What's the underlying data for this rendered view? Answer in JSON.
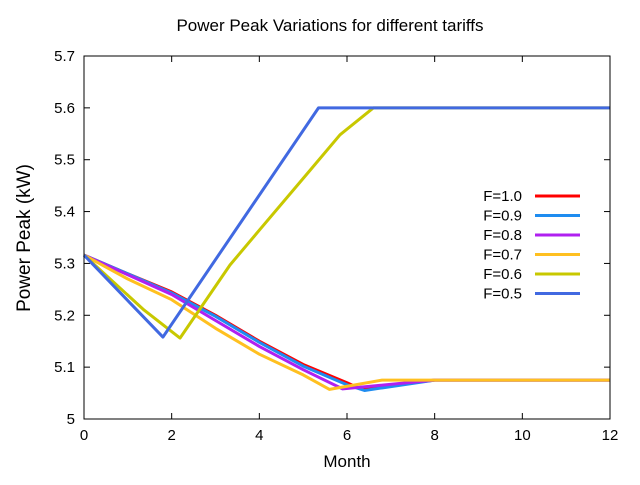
{
  "chart_data": {
    "type": "line",
    "title": "Power Peak Variations for different tariffs",
    "xlabel": "Month",
    "ylabel": "Power Peak (kW)",
    "xlim": [
      0,
      12
    ],
    "ylim": [
      5,
      5.7
    ],
    "xticks": [
      0,
      2,
      4,
      6,
      8,
      10,
      12
    ],
    "xtick_labels": [
      "0",
      "2",
      "4",
      "6",
      "8",
      "10",
      "12"
    ],
    "yticks": [
      5,
      5.1,
      5.2,
      5.3,
      5.4,
      5.5,
      5.6,
      5.7
    ],
    "ytick_labels": [
      "5",
      "5.1",
      "5.2",
      "5.3",
      "5.4",
      "5.5",
      "5.6",
      "5.7"
    ],
    "grid": false,
    "legend_position": "right",
    "series": [
      {
        "name": "F=1.0",
        "color": "#ff0000",
        "x": [
          0,
          1,
          2,
          3,
          4,
          5,
          6,
          6.3,
          8,
          12
        ],
        "y": [
          5.316,
          5.28,
          5.245,
          5.2,
          5.15,
          5.105,
          5.07,
          5.058,
          5.075,
          5.075
        ]
      },
      {
        "name": "F=0.9",
        "color": "#1e8cf0",
        "x": [
          0,
          1,
          2,
          3,
          4,
          5,
          6,
          6.4,
          8,
          12
        ],
        "y": [
          5.316,
          5.28,
          5.243,
          5.198,
          5.148,
          5.102,
          5.066,
          5.055,
          5.075,
          5.075
        ]
      },
      {
        "name": "F=0.8",
        "color": "#b020f0",
        "x": [
          0,
          1,
          2,
          3,
          4,
          5,
          5.9,
          8,
          12
        ],
        "y": [
          5.316,
          5.278,
          5.24,
          5.19,
          5.14,
          5.095,
          5.058,
          5.075,
          5.075
        ]
      },
      {
        "name": "F=0.7",
        "color": "#ffc020",
        "x": [
          0,
          1,
          2,
          3,
          4,
          5,
          5.6,
          6.8,
          12
        ],
        "y": [
          5.316,
          5.27,
          5.23,
          5.175,
          5.125,
          5.085,
          5.057,
          5.075,
          5.075
        ]
      },
      {
        "name": "F=0.6",
        "color": "#c8c800",
        "x": [
          0,
          1.37,
          2.19,
          3.33,
          4.0,
          5.16,
          5.84,
          6.6,
          12
        ],
        "y": [
          5.316,
          5.21,
          5.156,
          5.297,
          5.364,
          5.48,
          5.548,
          5.6,
          5.6
        ]
      },
      {
        "name": "F=0.5",
        "color": "#4169e1",
        "x": [
          0,
          1.8,
          5.35,
          12
        ],
        "y": [
          5.316,
          5.158,
          5.6,
          5.6
        ]
      }
    ]
  }
}
